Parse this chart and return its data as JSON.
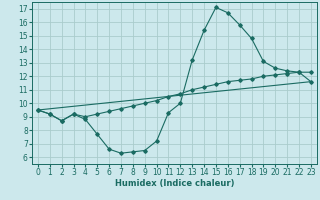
{
  "xlabel": "Humidex (Indice chaleur)",
  "bg_color": "#cce8ec",
  "line_color": "#1a6b62",
  "grid_color": "#aacccc",
  "xlim": [
    -0.5,
    23.5
  ],
  "ylim": [
    5.5,
    17.5
  ],
  "xticks": [
    0,
    1,
    2,
    3,
    4,
    5,
    6,
    7,
    8,
    9,
    10,
    11,
    12,
    13,
    14,
    15,
    16,
    17,
    18,
    19,
    20,
    21,
    22,
    23
  ],
  "yticks": [
    6,
    7,
    8,
    9,
    10,
    11,
    12,
    13,
    14,
    15,
    16,
    17
  ],
  "line1_x": [
    0,
    1,
    2,
    3,
    4,
    5,
    6,
    7,
    8,
    9,
    10,
    11,
    12,
    13,
    14,
    15,
    16,
    17,
    18,
    19,
    20,
    21,
    22,
    23
  ],
  "line1_y": [
    9.5,
    9.2,
    8.7,
    9.2,
    8.8,
    7.7,
    6.6,
    6.3,
    6.4,
    6.5,
    7.2,
    9.3,
    10.0,
    13.2,
    15.4,
    17.1,
    16.7,
    15.8,
    14.8,
    13.1,
    12.6,
    12.4,
    12.3,
    11.6
  ],
  "line2_x": [
    0,
    1,
    2,
    3,
    4,
    5,
    6,
    7,
    8,
    9,
    10,
    11,
    12,
    13,
    14,
    15,
    16,
    17,
    18,
    19,
    20,
    21,
    22,
    23
  ],
  "line2_y": [
    9.5,
    9.2,
    8.7,
    9.2,
    9.0,
    9.2,
    9.4,
    9.6,
    9.8,
    10.0,
    10.2,
    10.5,
    10.7,
    11.0,
    11.2,
    11.4,
    11.6,
    11.7,
    11.8,
    12.0,
    12.1,
    12.2,
    12.3,
    12.3
  ],
  "line3_x": [
    0,
    23
  ],
  "line3_y": [
    9.5,
    11.6
  ],
  "tick_fontsize": 5.5,
  "xlabel_fontsize": 6.0
}
